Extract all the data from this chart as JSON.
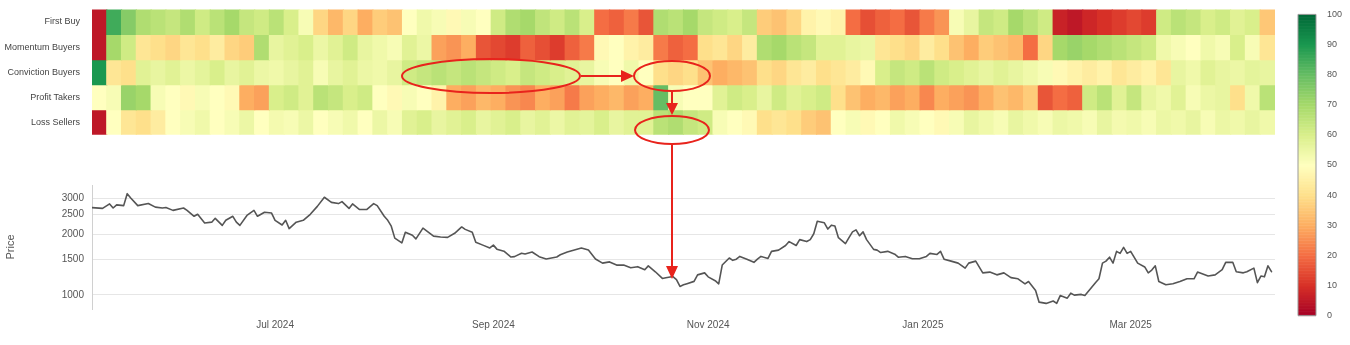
{
  "chart_data": [
    {
      "type": "heatmap",
      "y_categories": [
        "First Buy",
        "Momentum Buyers",
        "Conviction Buyers",
        "Profit Takers",
        "Loss Sellers"
      ],
      "categories": [
        null,
        null,
        null,
        null,
        null,
        null,
        null,
        null,
        null,
        null,
        null,
        null,
        null,
        null,
        null,
        null,
        null,
        null,
        null,
        null,
        null,
        null,
        null,
        null,
        null,
        null,
        null,
        null,
        null,
        null,
        null,
        null,
        null,
        null,
        null,
        null,
        null,
        null,
        null,
        null,
        null,
        null,
        null,
        null,
        null,
        null,
        null,
        null,
        null,
        null,
        null,
        null,
        null,
        null,
        null,
        null,
        null,
        null,
        null,
        null,
        null,
        null,
        null,
        null,
        null,
        null,
        null,
        null,
        null,
        null,
        null,
        null,
        null,
        null,
        null,
        null,
        null,
        null,
        null,
        null
      ],
      "cells": [
        [
          5,
          85,
          75,
          68,
          66,
          64,
          68,
          62,
          66,
          70,
          64,
          62,
          66,
          60,
          52,
          38,
          32,
          38,
          30,
          36,
          34,
          50,
          54,
          52,
          48,
          52,
          50,
          62,
          68,
          70,
          65,
          62,
          66,
          60,
          20,
          18,
          22,
          16,
          68,
          66,
          70,
          64,
          62,
          60,
          64,
          36,
          34,
          38,
          46,
          48,
          46,
          20,
          15,
          18,
          20,
          16,
          22,
          26,
          52,
          56,
          64,
          62,
          70,
          66,
          62,
          7,
          5,
          8,
          10,
          12,
          14,
          12,
          62,
          66,
          64,
          60,
          62,
          58,
          60,
          35
        ],
        [
          5,
          70,
          62,
          42,
          40,
          38,
          42,
          40,
          44,
          38,
          36,
          68,
          56,
          58,
          60,
          55,
          58,
          62,
          56,
          54,
          52,
          58,
          55,
          28,
          26,
          30,
          16,
          14,
          12,
          18,
          15,
          12,
          18,
          22,
          48,
          50,
          46,
          44,
          22,
          18,
          20,
          40,
          42,
          38,
          44,
          68,
          70,
          66,
          64,
          58,
          58,
          56,
          55,
          42,
          40,
          38,
          44,
          40,
          34,
          30,
          36,
          34,
          32,
          20,
          38,
          70,
          72,
          70,
          68,
          66,
          64,
          62,
          54,
          52,
          50,
          54,
          52,
          60,
          52,
          42
        ],
        [
          90,
          42,
          40,
          58,
          56,
          58,
          55,
          57,
          60,
          56,
          58,
          55,
          54,
          56,
          58,
          52,
          56,
          58,
          55,
          54,
          56,
          62,
          64,
          66,
          64,
          66,
          64,
          62,
          60,
          64,
          62,
          60,
          58,
          56,
          52,
          50,
          54,
          50,
          40,
          38,
          40,
          34,
          30,
          32,
          34,
          40,
          38,
          42,
          44,
          40,
          42,
          44,
          48,
          60,
          64,
          62,
          66,
          62,
          60,
          58,
          56,
          58,
          56,
          54,
          52,
          48,
          46,
          44,
          46,
          42,
          44,
          46,
          42,
          56,
          54,
          58,
          56,
          55,
          57,
          56
        ],
        [
          50,
          52,
          72,
          70,
          52,
          50,
          48,
          52,
          50,
          48,
          30,
          28,
          60,
          62,
          58,
          66,
          64,
          60,
          62,
          50,
          48,
          52,
          50,
          46,
          30,
          28,
          32,
          30,
          26,
          24,
          30,
          28,
          22,
          28,
          30,
          32,
          28,
          30,
          80,
          52,
          50,
          50,
          58,
          62,
          60,
          56,
          62,
          58,
          60,
          62,
          40,
          34,
          30,
          32,
          28,
          30,
          24,
          30,
          28,
          26,
          30,
          34,
          32,
          36,
          16,
          20,
          18,
          62,
          66,
          58,
          64,
          56,
          54,
          58,
          52,
          55,
          56,
          40,
          54,
          66
        ],
        [
          5,
          50,
          42,
          40,
          44,
          50,
          52,
          54,
          50,
          52,
          55,
          50,
          53,
          52,
          55,
          50,
          52,
          54,
          50,
          55,
          52,
          58,
          60,
          56,
          58,
          60,
          56,
          58,
          60,
          56,
          58,
          55,
          58,
          57,
          60,
          56,
          58,
          58,
          66,
          68,
          64,
          62,
          52,
          50,
          48,
          40,
          42,
          40,
          36,
          34,
          50,
          52,
          48,
          50,
          54,
          52,
          50,
          48,
          52,
          56,
          54,
          52,
          56,
          54,
          52,
          55,
          54,
          52,
          56,
          53,
          54,
          52,
          55,
          54,
          56,
          52,
          55,
          54,
          56,
          54
        ]
      ],
      "clim": [
        0,
        100
      ],
      "cticks": [
        0,
        10,
        20,
        30,
        40,
        50,
        60,
        70,
        80,
        90,
        100
      ]
    },
    {
      "type": "line",
      "ylabel": "Price",
      "log": "y",
      "grid": "y",
      "color": "#555555",
      "xlim": [
        "2024-05-10",
        "2025-04-11"
      ],
      "xticks": [
        {
          "value": "2024-07-01",
          "label": "Jul 2024"
        },
        {
          "value": "2024-09-01",
          "label": "Sep 2024"
        },
        {
          "value": "2024-11-01",
          "label": "Nov 2024"
        },
        {
          "value": "2025-01-01",
          "label": "Jan 2025"
        },
        {
          "value": "2025-03-01",
          "label": "Mar 2025"
        }
      ],
      "ylim": [
        850,
        3500
      ],
      "yticks": [
        1000,
        1500,
        2000,
        2500,
        3000
      ],
      "x": [
        "2024-05-10",
        "2024-05-13",
        "2024-05-15",
        "2024-05-16",
        "2024-05-17",
        "2024-05-19",
        "2024-05-20",
        "2024-05-21",
        "2024-05-23",
        "2024-05-26",
        "2024-05-28",
        "2024-05-30",
        "2024-05-31",
        "2024-06-02",
        "2024-06-05",
        "2024-06-06",
        "2024-06-08",
        "2024-06-09",
        "2024-06-11",
        "2024-06-13",
        "2024-06-14",
        "2024-06-16",
        "2024-06-17",
        "2024-06-19",
        "2024-06-20",
        "2024-06-21",
        "2024-06-23",
        "2024-06-25",
        "2024-06-26",
        "2024-06-28",
        "2024-06-30",
        "2024-07-01",
        "2024-07-03",
        "2024-07-04",
        "2024-07-05",
        "2024-07-07",
        "2024-07-09",
        "2024-07-11",
        "2024-07-13",
        "2024-07-15",
        "2024-07-17",
        "2024-07-19",
        "2024-07-20",
        "2024-07-22",
        "2024-07-23",
        "2024-07-25",
        "2024-07-27",
        "2024-07-29",
        "2024-07-30",
        "2024-08-01",
        "2024-08-02",
        "2024-08-03",
        "2024-08-04",
        "2024-08-06",
        "2024-08-07",
        "2024-08-09",
        "2024-08-10",
        "2024-08-12",
        "2024-08-15",
        "2024-08-17",
        "2024-08-19",
        "2024-08-21",
        "2024-08-23",
        "2024-08-24",
        "2024-08-26",
        "2024-08-27",
        "2024-08-29",
        "2024-08-31",
        "2024-09-01",
        "2024-09-02",
        "2024-09-04",
        "2024-09-06",
        "2024-09-07",
        "2024-09-09",
        "2024-09-10",
        "2024-09-12",
        "2024-09-14",
        "2024-09-16",
        "2024-09-19",
        "2024-09-20",
        "2024-09-22",
        "2024-09-24",
        "2024-09-26",
        "2024-09-28",
        "2024-09-30",
        "2024-10-02",
        "2024-10-04",
        "2024-10-06",
        "2024-10-08",
        "2024-10-10",
        "2024-10-12",
        "2024-10-14",
        "2024-10-15",
        "2024-10-17",
        "2024-10-19",
        "2024-10-20",
        "2024-10-22",
        "2024-10-23",
        "2024-10-24",
        "2024-10-25",
        "2024-10-26",
        "2024-10-28",
        "2024-10-29",
        "2024-10-31",
        "2024-11-01",
        "2024-11-03",
        "2024-11-04",
        "2024-11-05",
        "2024-11-07",
        "2024-11-08",
        "2024-11-09",
        "2024-11-10",
        "2024-11-12",
        "2024-11-14",
        "2024-11-15",
        "2024-11-16",
        "2024-11-18",
        "2024-11-19",
        "2024-11-21",
        "2024-11-23",
        "2024-11-24",
        "2024-11-26",
        "2024-11-27",
        "2024-11-29",
        "2024-11-30",
        "2024-12-01",
        "2024-12-02",
        "2024-12-04",
        "2024-12-05",
        "2024-12-06",
        "2024-12-07",
        "2024-12-08",
        "2024-12-10",
        "2024-12-11",
        "2024-12-12",
        "2024-12-13",
        "2024-12-14",
        "2024-12-15",
        "2024-12-16",
        "2024-12-18",
        "2024-12-19",
        "2024-12-20",
        "2024-12-22",
        "2024-12-24",
        "2024-12-25",
        "2024-12-27",
        "2024-12-29",
        "2024-12-31",
        "2025-01-02",
        "2025-01-03",
        "2025-01-05",
        "2025-01-06",
        "2025-01-07",
        "2025-01-09",
        "2025-01-11",
        "2025-01-13",
        "2025-01-14",
        "2025-01-16",
        "2025-01-18",
        "2025-01-20",
        "2025-01-22",
        "2025-01-24",
        "2025-01-26",
        "2025-01-28",
        "2025-01-30",
        "2025-01-31",
        "2025-02-02",
        "2025-02-03",
        "2025-02-05",
        "2025-02-07",
        "2025-02-08",
        "2025-02-09",
        "2025-02-11",
        "2025-02-12",
        "2025-02-13",
        "2025-02-15",
        "2025-02-16",
        "2025-02-19",
        "2025-02-20",
        "2025-02-21",
        "2025-02-22",
        "2025-02-23",
        "2025-02-24",
        "2025-02-25",
        "2025-02-26",
        "2025-02-27",
        "2025-02-28",
        "2025-03-01",
        "2025-03-03",
        "2025-03-05",
        "2025-03-06",
        "2025-03-07",
        "2025-03-08",
        "2025-03-09",
        "2025-03-11",
        "2025-03-13",
        "2025-03-15",
        "2025-03-17",
        "2025-03-19",
        "2025-03-20",
        "2025-03-23",
        "2025-03-25",
        "2025-03-27",
        "2025-03-28",
        "2025-03-30",
        "2025-03-31",
        "2025-04-02",
        "2025-04-03",
        "2025-04-05",
        "2025-04-06",
        "2025-04-07",
        "2025-04-08",
        "2025-04-09",
        "2025-04-10"
      ],
      "values": [
        2705,
        2680,
        2820,
        2692,
        2790,
        2766,
        3170,
        3020,
        2766,
        2831,
        2718,
        2692,
        2705,
        2620,
        2692,
        2620,
        2449,
        2506,
        2268,
        2290,
        2393,
        2208,
        2339,
        2449,
        2290,
        2208,
        2472,
        2620,
        2449,
        2564,
        2541,
        2339,
        2218,
        2339,
        2128,
        2290,
        2339,
        2506,
        2742,
        3043,
        2870,
        2831,
        2895,
        2680,
        2820,
        2644,
        2644,
        2831,
        2766,
        2449,
        2339,
        2188,
        1909,
        1807,
        2042,
        1971,
        1892,
        2138,
        1953,
        1935,
        1926,
        2017,
        2168,
        2109,
        2042,
        1823,
        1762,
        1706,
        1762,
        1683,
        1644,
        1538,
        1545,
        1607,
        1592,
        1629,
        1545,
        1503,
        1538,
        1578,
        1629,
        1667,
        1706,
        1667,
        1503,
        1435,
        1455,
        1403,
        1403,
        1361,
        1378,
        1330,
        1390,
        1300,
        1205,
        1214,
        1231,
        1190,
        1100,
        1120,
        1135,
        1165,
        1255,
        1284,
        1227,
        1174,
        1133,
        1404,
        1521,
        1481,
        1501,
        1549,
        1501,
        1448,
        1501,
        1549,
        1514,
        1641,
        1664,
        1754,
        1835,
        1754,
        1876,
        1835,
        1876,
        2006,
        2313,
        2273,
        2117,
        2213,
        2193,
        1919,
        1794,
        1919,
        2050,
        2097,
        1961,
        2050,
        1876,
        1679,
        1664,
        1619,
        1641,
        1590,
        1535,
        1549,
        1508,
        1508,
        1549,
        1604,
        1584,
        1641,
        1501,
        1468,
        1435,
        1355,
        1435,
        1468,
        1284,
        1295,
        1255,
        1284,
        1216,
        1200,
        1133,
        1163,
        1050,
        919,
        906,
        931,
        906,
        991,
        962,
        1018,
        996,
        1004,
        991,
        1148,
        1200,
        1435,
        1468,
        1535,
        1435,
        1641,
        1604,
        1716,
        1604,
        1641,
        1435,
        1374,
        1284,
        1325,
        1391,
        1163,
        1122,
        1133,
        1163,
        1200,
        1200,
        1295,
        1238,
        1255,
        1331,
        1448,
        1448,
        1301,
        1284,
        1301,
        1355,
        1148,
        1238,
        1227,
        1391,
        1301
      ]
    }
  ]
}
